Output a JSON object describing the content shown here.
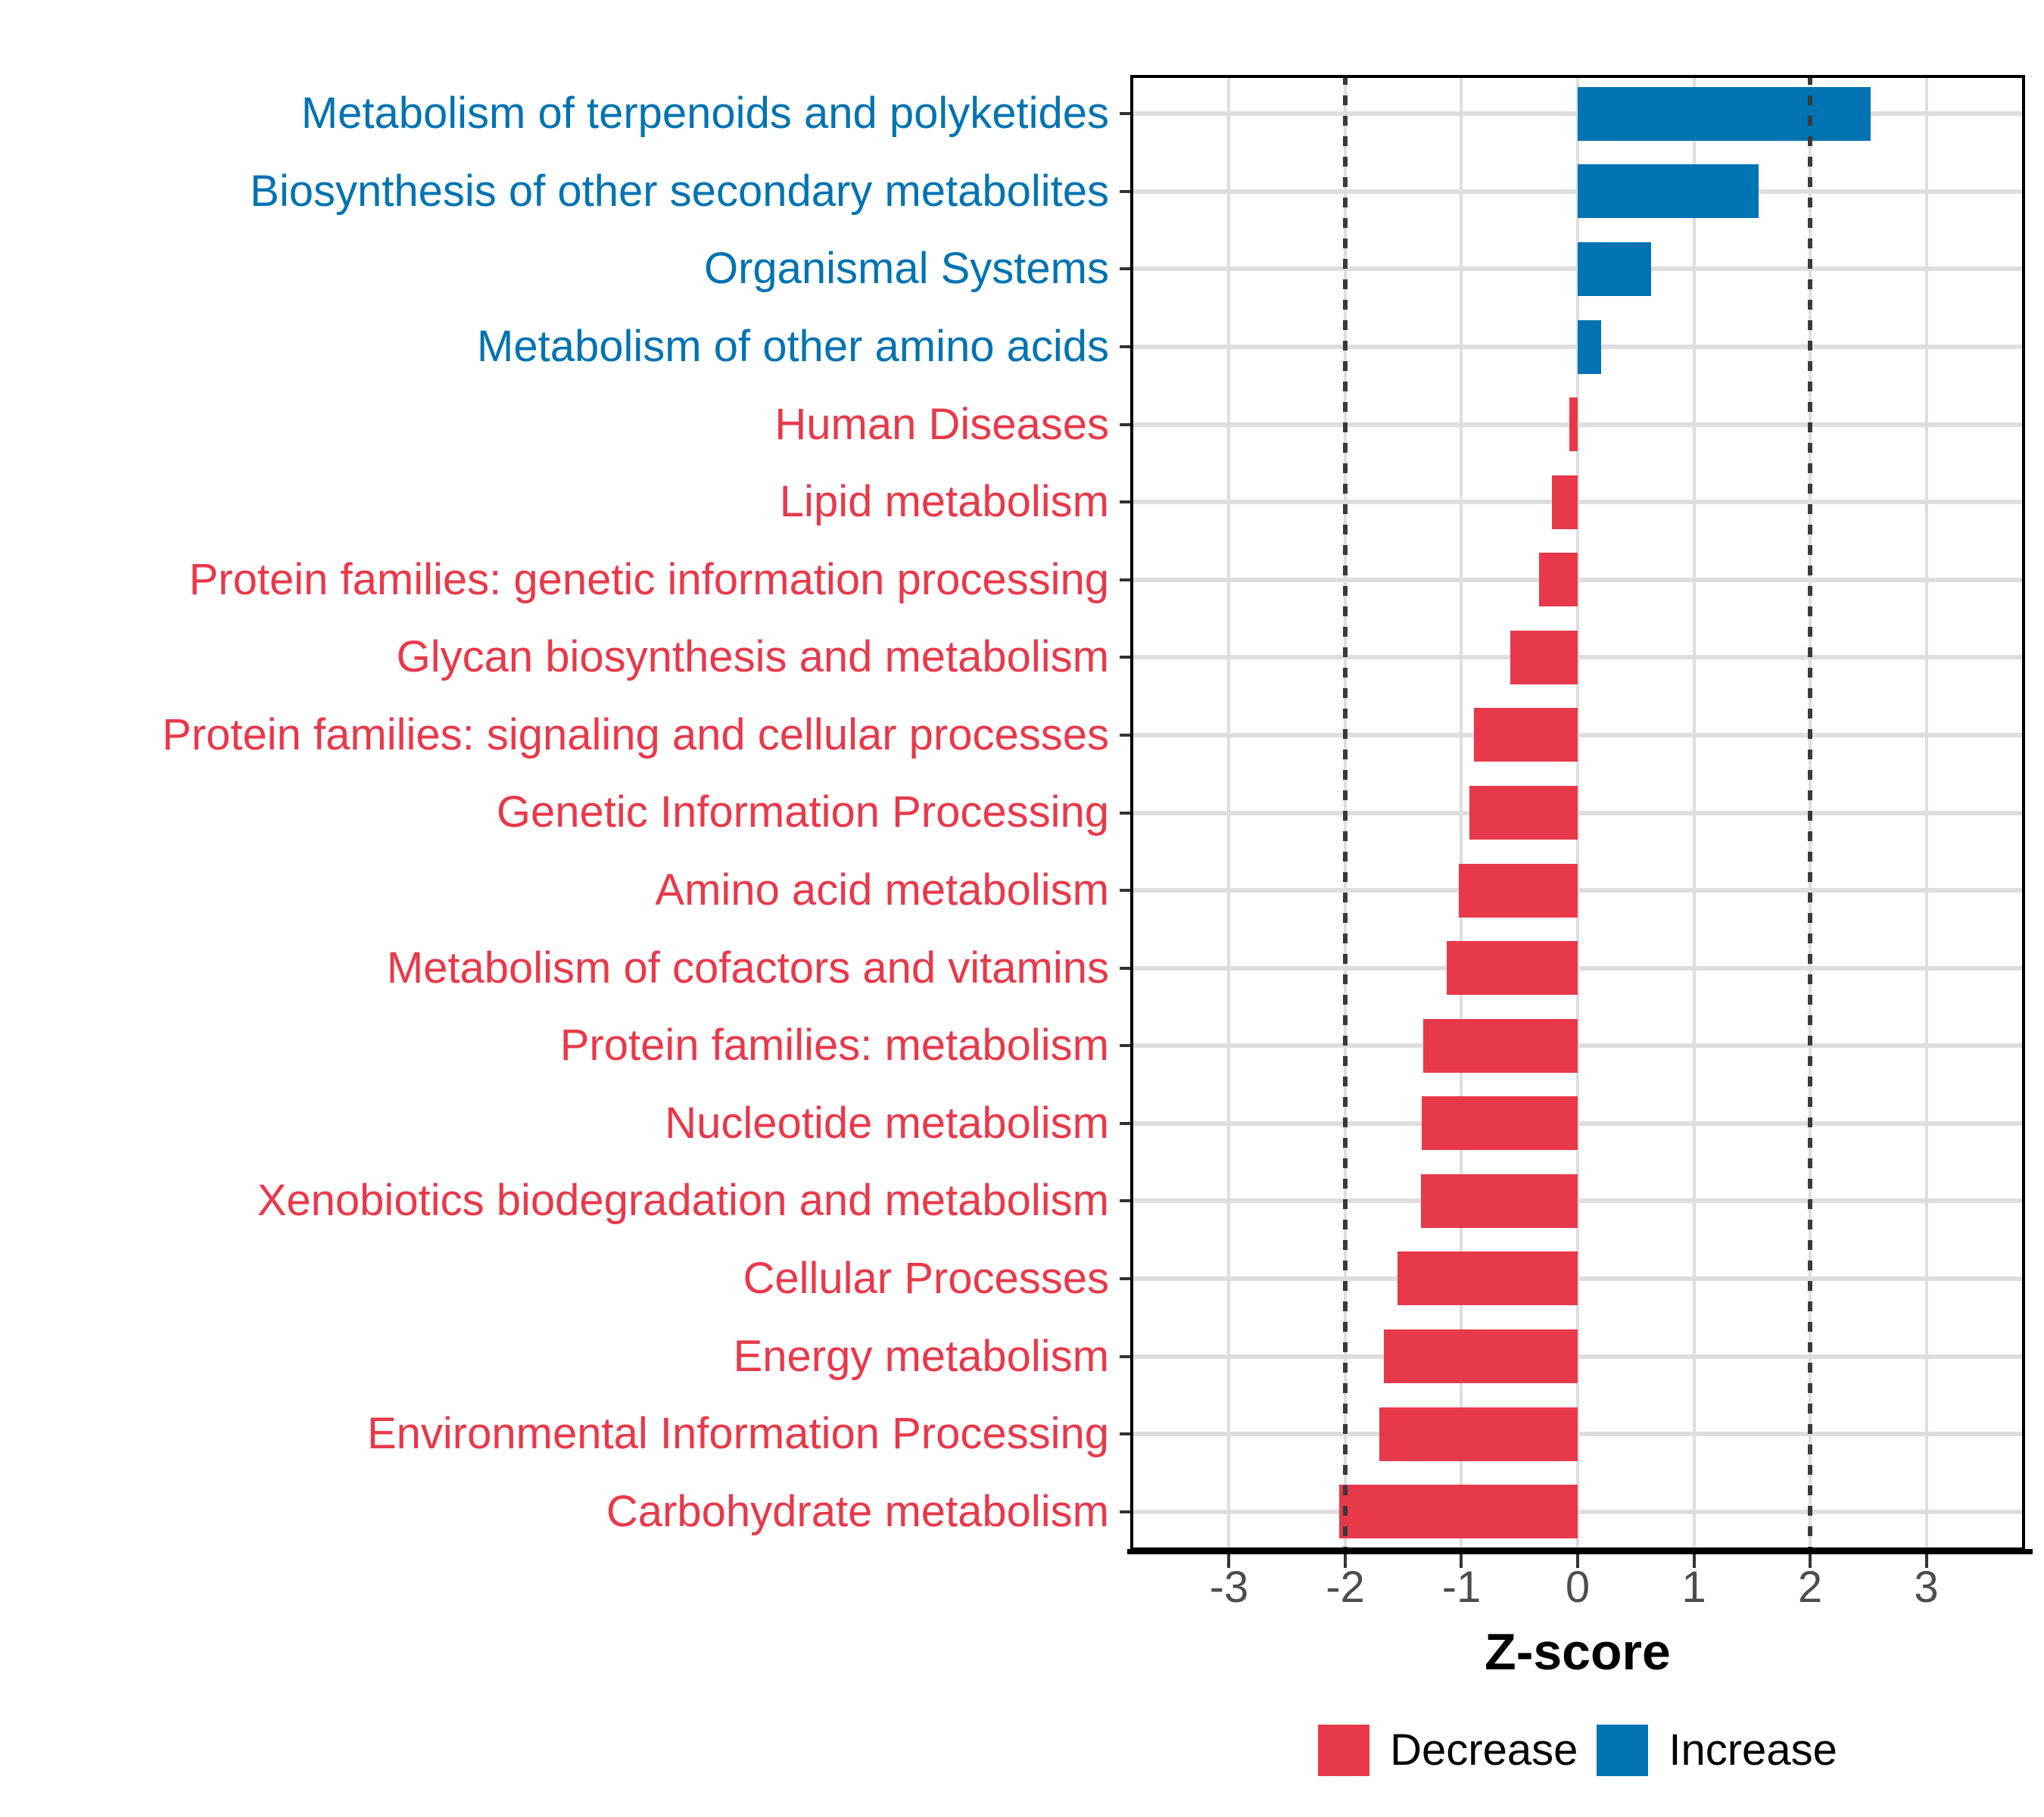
{
  "chart_data": {
    "type": "bar",
    "orientation": "horizontal",
    "title": "",
    "xlabel": "Z-score",
    "ylabel": "",
    "categories": [
      "Metabolism of terpenoids and polyketides",
      "Biosynthesis of other secondary metabolites",
      "Organismal Systems",
      "Metabolism of other amino acids",
      "Human Diseases",
      "Lipid metabolism",
      "Protein families: genetic information processing",
      "Glycan biosynthesis and metabolism",
      "Protein families: signaling and cellular processes",
      "Genetic Information Processing",
      "Amino acid metabolism",
      "Metabolism of cofactors and vitamins",
      "Protein families: metabolism",
      "Nucleotide metabolism",
      "Xenobiotics biodegradation and metabolism",
      "Cellular Processes",
      "Energy metabolism",
      "Environmental Information Processing",
      "Carbohydrate metabolism"
    ],
    "values": [
      2.52,
      1.56,
      0.63,
      0.2,
      -0.07,
      -0.22,
      -0.33,
      -0.58,
      -0.89,
      -0.93,
      -1.02,
      -1.13,
      -1.33,
      -1.34,
      -1.35,
      -1.55,
      -1.67,
      -1.71,
      -2.05
    ],
    "directions": [
      "Increase",
      "Increase",
      "Increase",
      "Increase",
      "Decrease",
      "Decrease",
      "Decrease",
      "Decrease",
      "Decrease",
      "Decrease",
      "Decrease",
      "Decrease",
      "Decrease",
      "Decrease",
      "Decrease",
      "Decrease",
      "Decrease",
      "Decrease",
      "Decrease"
    ],
    "xlim": [
      -3.85,
      3.85
    ],
    "xticks": [
      "-3",
      "-2",
      "-1",
      "0",
      "1",
      "2",
      "3"
    ],
    "xtick_values": [
      -3,
      -2,
      -1,
      0,
      1,
      2,
      3
    ],
    "reference_lines": [
      -2,
      2
    ],
    "grid": true,
    "legend_position": "bottom"
  },
  "legend": {
    "items": [
      {
        "label": "Decrease",
        "color": "#E8394A"
      },
      {
        "label": "Increase",
        "color": "#0073B2"
      }
    ]
  },
  "colors": {
    "increase": "#0073B2",
    "decrease": "#E8394A",
    "grid": "#DEDEDE",
    "axis_tick_text": "#4D4D4D",
    "tick_mark": "#333333",
    "panel_border": "#000000",
    "reference_line": "#3A3A3A"
  }
}
